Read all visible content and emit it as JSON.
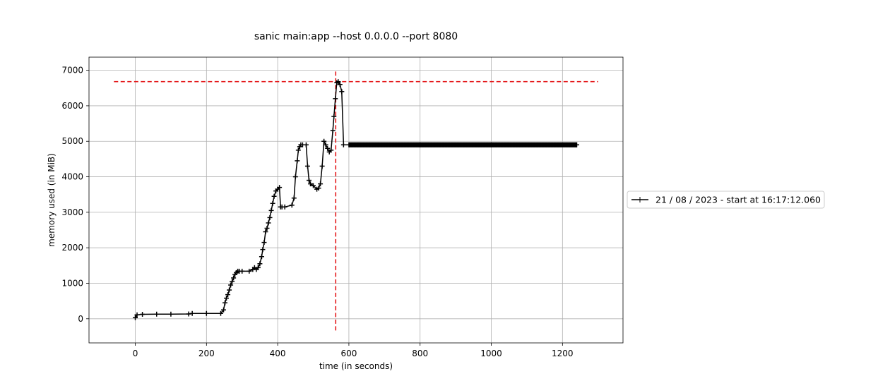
{
  "chart_data": {
    "type": "line",
    "title": "sanic main:app --host 0.0.0.0 --port 8080",
    "xlabel": "time (in seconds)",
    "ylabel": "memory used (in MiB)",
    "xlim": [
      -130,
      1370
    ],
    "ylim": [
      -680,
      7370
    ],
    "xticks": [
      0,
      200,
      400,
      600,
      800,
      1000,
      1200
    ],
    "yticks": [
      0,
      1000,
      2000,
      3000,
      4000,
      5000,
      6000,
      7000
    ],
    "grid": true,
    "legend_position": "center-right, outside plot",
    "series": [
      {
        "name": "21 / 08 / 2023 - start at 16:17:12.060",
        "color": "#000000",
        "marker": "+",
        "x": [
          0,
          5,
          20,
          60,
          100,
          150,
          160,
          200,
          240,
          248,
          252,
          256,
          260,
          264,
          268,
          272,
          276,
          280,
          284,
          288,
          292,
          300,
          320,
          330,
          335,
          340,
          345,
          350,
          355,
          358,
          362,
          366,
          370,
          374,
          378,
          382,
          386,
          390,
          395,
          400,
          405,
          408,
          412,
          420,
          440,
          446,
          450,
          455,
          458,
          462,
          465,
          470,
          480,
          484,
          488,
          492,
          500,
          510,
          515,
          520,
          525,
          530,
          535,
          540,
          545,
          550,
          555,
          558,
          562,
          566,
          570,
          575,
          580,
          585,
          600,
          800,
          1000,
          1240
        ],
        "y": [
          30,
          110,
          125,
          130,
          130,
          135,
          150,
          150,
          150,
          250,
          450,
          580,
          680,
          810,
          950,
          1050,
          1150,
          1250,
          1300,
          1340,
          1340,
          1340,
          1340,
          1390,
          1440,
          1390,
          1440,
          1550,
          1750,
          1950,
          2150,
          2450,
          2550,
          2700,
          2850,
          3050,
          3250,
          3450,
          3600,
          3650,
          3700,
          3150,
          3150,
          3150,
          3200,
          3400,
          4000,
          4450,
          4750,
          4850,
          4900,
          4900,
          4900,
          4300,
          3900,
          3800,
          3750,
          3650,
          3680,
          3800,
          4300,
          5000,
          4900,
          4800,
          4700,
          4750,
          5300,
          5700,
          6200,
          6650,
          6680,
          6600,
          6400,
          4900,
          4900,
          4900,
          4900,
          4900
        ]
      }
    ],
    "reference_lines": [
      {
        "orientation": "horizontal",
        "value": 6680,
        "from": -60,
        "to": 1300,
        "color": "#e41a1c",
        "style": "dashed"
      },
      {
        "orientation": "vertical",
        "value": 563,
        "from": -330,
        "to": 7000,
        "color": "#e41a1c",
        "style": "dashed"
      }
    ]
  }
}
